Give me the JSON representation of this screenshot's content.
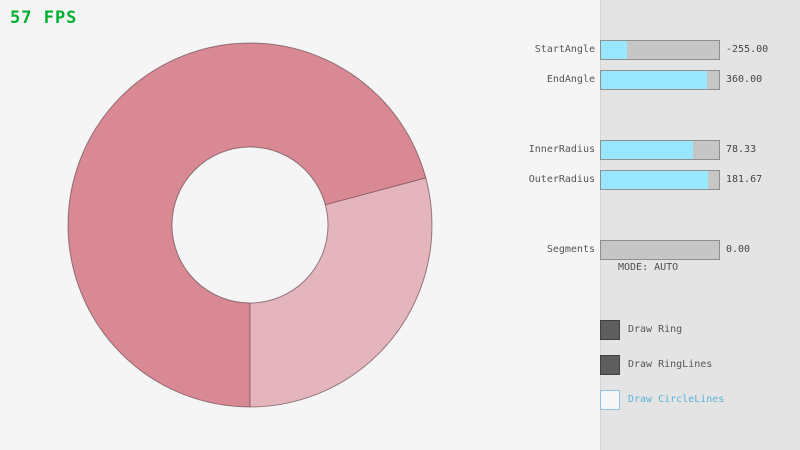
{
  "fps": {
    "label": "57 FPS",
    "color": "#00b02e"
  },
  "ring": {
    "start_angle": -255.0,
    "end_angle": 360.0,
    "inner_radius": 78.33,
    "outer_radius": 181.67,
    "segments": 0,
    "colors": {
      "double_pass_fill": "#d98994",
      "single_pass_fill": "#e4b5bc",
      "line": "rgba(40,20,25,0.45)"
    }
  },
  "panel": {
    "sliders": [
      {
        "label": "StartAngle",
        "value": "-255.00",
        "fill_pct": 21.7
      },
      {
        "label": "EndAngle",
        "value": "360.00",
        "fill_pct": 90.0
      },
      {
        "label": "InnerRadius",
        "value": "78.33",
        "fill_pct": 78.3
      },
      {
        "label": "OuterRadius",
        "value": "181.67",
        "fill_pct": 90.8
      },
      {
        "label": "Segments",
        "value": "0.00",
        "fill_pct": 0
      }
    ],
    "mode_text": "MODE: AUTO",
    "checkboxes": [
      {
        "label": "Draw Ring",
        "checked": true
      },
      {
        "label": "Draw RingLines",
        "checked": true
      },
      {
        "label": "Draw CircleLines",
        "checked": false
      }
    ],
    "accent_color": "#97e8ff"
  }
}
